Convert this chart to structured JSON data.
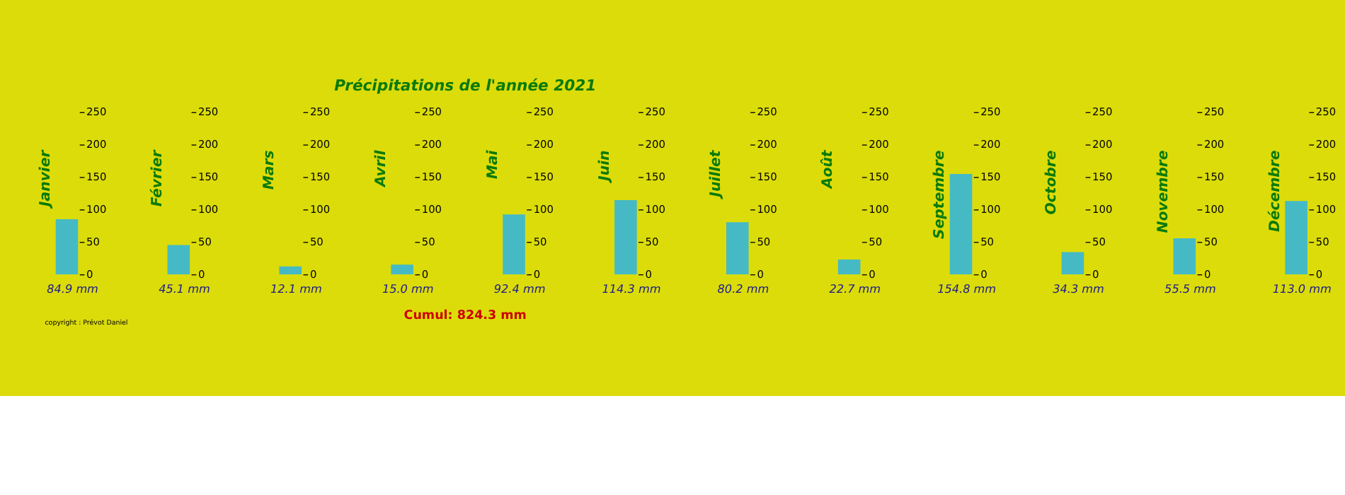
{
  "chart_data": [
    {
      "type": "other",
      "title": "Précipitations de l'année 2021",
      "annotations": [
        "Cumul: 824.3 mm",
        "copyright : Prévot Daniel"
      ]
    },
    {
      "type": "bar",
      "categories": [
        "Janvier"
      ],
      "values": [
        84.9
      ],
      "value_labels": [
        "84.9 mm"
      ],
      "color": "#2ab4e6",
      "ylim": [
        0,
        250
      ],
      "yticks": [
        0,
        50,
        100,
        150,
        200,
        250
      ],
      "grid": false
    },
    {
      "type": "bar",
      "categories": [
        "Février"
      ],
      "values": [
        45.1
      ],
      "value_labels": [
        "45.1 mm"
      ],
      "color": "#2ab4e6",
      "ylim": [
        0,
        250
      ],
      "yticks": [
        0,
        50,
        100,
        150,
        200,
        250
      ],
      "grid": false
    },
    {
      "type": "bar",
      "categories": [
        "Mars"
      ],
      "values": [
        12.1
      ],
      "value_labels": [
        "12.1 mm"
      ],
      "color": "#2ab4e6",
      "ylim": [
        0,
        250
      ],
      "yticks": [
        0,
        50,
        100,
        150,
        200,
        250
      ],
      "grid": false
    },
    {
      "type": "bar",
      "categories": [
        "Avril"
      ],
      "values": [
        15.0
      ],
      "value_labels": [
        "15.0 mm"
      ],
      "color": "#2ab4e6",
      "ylim": [
        0,
        250
      ],
      "yticks": [
        0,
        50,
        100,
        150,
        200,
        250
      ],
      "grid": false
    },
    {
      "type": "bar",
      "categories": [
        "Mai"
      ],
      "values": [
        92.4
      ],
      "value_labels": [
        "92.4 mm"
      ],
      "color": "#2ab4e6",
      "ylim": [
        0,
        250
      ],
      "yticks": [
        0,
        50,
        100,
        150,
        200,
        250
      ],
      "grid": false
    },
    {
      "type": "bar",
      "categories": [
        "Juin"
      ],
      "values": [
        114.3
      ],
      "value_labels": [
        "114.3 mm"
      ],
      "color": "#2ab4e6",
      "ylim": [
        0,
        250
      ],
      "yticks": [
        0,
        50,
        100,
        150,
        200,
        250
      ],
      "grid": false
    },
    {
      "type": "bar",
      "categories": [
        "Juillet"
      ],
      "values": [
        80.2
      ],
      "value_labels": [
        "80.2 mm"
      ],
      "color": "#2ab4e6",
      "ylim": [
        0,
        250
      ],
      "yticks": [
        0,
        50,
        100,
        150,
        200,
        250
      ],
      "grid": false
    },
    {
      "type": "bar",
      "categories": [
        "Août"
      ],
      "values": [
        22.7
      ],
      "value_labels": [
        "22.7 mm"
      ],
      "color": "#2ab4e6",
      "ylim": [
        0,
        250
      ],
      "yticks": [
        0,
        50,
        100,
        150,
        200,
        250
      ],
      "grid": false
    },
    {
      "type": "bar",
      "categories": [
        "Septembre"
      ],
      "values": [
        154.8
      ],
      "value_labels": [
        "154.8 mm"
      ],
      "color": "#2ab4e6",
      "ylim": [
        0,
        250
      ],
      "yticks": [
        0,
        50,
        100,
        150,
        200,
        250
      ],
      "grid": false
    },
    {
      "type": "bar",
      "categories": [
        "Octobre"
      ],
      "values": [
        34.3
      ],
      "value_labels": [
        "34.3 mm"
      ],
      "color": "#2ab4e6",
      "ylim": [
        0,
        250
      ],
      "yticks": [
        0,
        50,
        100,
        150,
        200,
        250
      ],
      "grid": false
    },
    {
      "type": "bar",
      "categories": [
        "Novembre"
      ],
      "values": [
        55.5
      ],
      "value_labels": [
        "55.5 mm"
      ],
      "color": "#2ab4e6",
      "ylim": [
        0,
        250
      ],
      "yticks": [
        0,
        50,
        100,
        150,
        200,
        250
      ],
      "grid": false
    },
    {
      "type": "bar",
      "categories": [
        "Décembre"
      ],
      "values": [
        113.0
      ],
      "value_labels": [
        "113.0 mm"
      ],
      "color": "#2ab4e6",
      "ylim": [
        0,
        250
      ],
      "yticks": [
        0,
        50,
        100,
        150,
        200,
        250
      ],
      "grid": false
    }
  ]
}
